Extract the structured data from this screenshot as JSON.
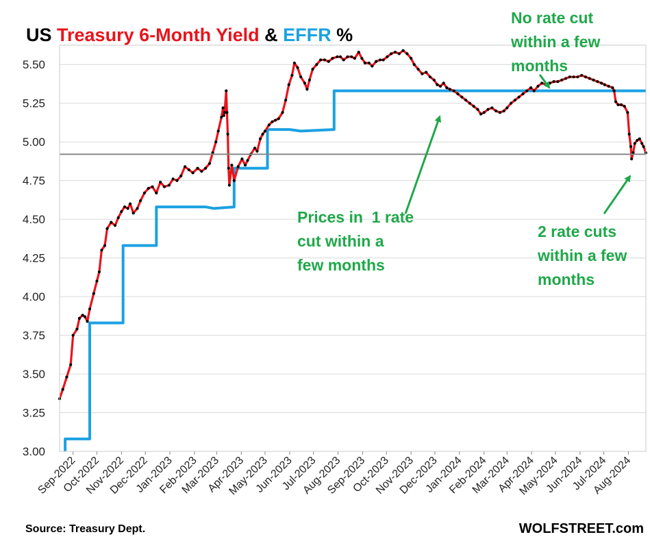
{
  "chart_data": {
    "type": "line",
    "title_parts": [
      {
        "text": "US ",
        "color": "#000000"
      },
      {
        "text": "Treasury 6-Month Yield",
        "color": "#e8141b"
      },
      {
        "text": " & ",
        "color": "#000000"
      },
      {
        "text": "EFFR",
        "color": "#1ba1e2"
      },
      {
        "text": " %",
        "color": "#000000"
      }
    ],
    "xlabel": "",
    "ylabel": "",
    "ylim": [
      3.0,
      5.625
    ],
    "yticks": [
      "3.00",
      "3.25",
      "3.50",
      "3.75",
      "4.00",
      "4.25",
      "4.50",
      "4.75",
      "5.00",
      "5.25",
      "5.50"
    ],
    "x_range": [
      "2022-08-15",
      "2024-08-23"
    ],
    "x_ticks": [
      {
        "date": "2022-09-01",
        "label": "Sep-2022"
      },
      {
        "date": "2022-10-01",
        "label": "Oct-2022"
      },
      {
        "date": "2022-11-01",
        "label": "Nov-2022"
      },
      {
        "date": "2022-12-01",
        "label": "Dec-2022"
      },
      {
        "date": "2023-01-01",
        "label": "Jan-2023"
      },
      {
        "date": "2023-02-01",
        "label": "Feb-2023"
      },
      {
        "date": "2023-03-01",
        "label": "Mar-2023"
      },
      {
        "date": "2023-04-01",
        "label": "Apr-2023"
      },
      {
        "date": "2023-05-01",
        "label": "May-2023"
      },
      {
        "date": "2023-06-01",
        "label": "Jun-2023"
      },
      {
        "date": "2023-07-01",
        "label": "Jul-2023"
      },
      {
        "date": "2023-08-01",
        "label": "Aug-2023"
      },
      {
        "date": "2023-09-01",
        "label": "Sep-2023"
      },
      {
        "date": "2023-10-01",
        "label": "Oct-2023"
      },
      {
        "date": "2023-11-01",
        "label": "Nov-2023"
      },
      {
        "date": "2023-12-01",
        "label": "Dec-2023"
      },
      {
        "date": "2024-01-01",
        "label": "Jan-2024"
      },
      {
        "date": "2024-02-01",
        "label": "Feb-2024"
      },
      {
        "date": "2024-03-01",
        "label": "Mar-2024"
      },
      {
        "date": "2024-04-01",
        "label": "Apr-2024"
      },
      {
        "date": "2024-05-01",
        "label": "May-2024"
      },
      {
        "date": "2024-06-01",
        "label": "Jun-2024"
      },
      {
        "date": "2024-07-01",
        "label": "Jul-2024"
      },
      {
        "date": "2024-08-01",
        "label": "Aug-2024"
      }
    ],
    "grid": true,
    "reference_line": {
      "y": 4.92,
      "color": "#888888"
    },
    "series": [
      {
        "color": "#e8141b",
        "marker_color": "#000000",
        "points": [
          [
            "2022-08-15",
            3.34
          ],
          [
            "2022-08-19",
            3.4
          ],
          [
            "2022-08-24",
            3.48
          ],
          [
            "2022-08-29",
            3.56
          ],
          [
            "2022-09-01",
            3.75
          ],
          [
            "2022-09-06",
            3.79
          ],
          [
            "2022-09-09",
            3.86
          ],
          [
            "2022-09-13",
            3.88
          ],
          [
            "2022-09-16",
            3.87
          ],
          [
            "2022-09-19",
            3.84
          ],
          [
            "2022-09-22",
            3.92
          ],
          [
            "2022-09-27",
            4.02
          ],
          [
            "2022-10-01",
            4.1
          ],
          [
            "2022-10-04",
            4.16
          ],
          [
            "2022-10-07",
            4.3
          ],
          [
            "2022-10-11",
            4.33
          ],
          [
            "2022-10-14",
            4.44
          ],
          [
            "2022-10-19",
            4.48
          ],
          [
            "2022-10-24",
            4.46
          ],
          [
            "2022-10-28",
            4.51
          ],
          [
            "2022-11-01",
            4.55
          ],
          [
            "2022-11-05",
            4.58
          ],
          [
            "2022-11-09",
            4.57
          ],
          [
            "2022-11-12",
            4.6
          ],
          [
            "2022-11-16",
            4.54
          ],
          [
            "2022-11-21",
            4.57
          ],
          [
            "2022-11-25",
            4.62
          ],
          [
            "2022-11-30",
            4.67
          ],
          [
            "2022-12-05",
            4.7
          ],
          [
            "2022-12-10",
            4.71
          ],
          [
            "2022-12-15",
            4.67
          ],
          [
            "2022-12-20",
            4.74
          ],
          [
            "2022-12-25",
            4.71
          ],
          [
            "2022-12-31",
            4.72
          ],
          [
            "2023-01-05",
            4.76
          ],
          [
            "2023-01-10",
            4.75
          ],
          [
            "2023-01-15",
            4.78
          ],
          [
            "2023-01-20",
            4.84
          ],
          [
            "2023-01-25",
            4.82
          ],
          [
            "2023-01-30",
            4.8
          ],
          [
            "2023-02-05",
            4.83
          ],
          [
            "2023-02-10",
            4.81
          ],
          [
            "2023-02-15",
            4.83
          ],
          [
            "2023-02-20",
            4.86
          ],
          [
            "2023-02-24",
            4.93
          ],
          [
            "2023-02-28",
            5.0
          ],
          [
            "2023-03-03",
            5.07
          ],
          [
            "2023-03-07",
            5.16
          ],
          [
            "2023-03-09",
            5.22
          ],
          [
            "2023-03-10",
            5.17
          ],
          [
            "2023-03-11",
            5.19
          ],
          [
            "2023-03-13",
            5.33
          ],
          [
            "2023-03-14",
            5.19
          ],
          [
            "2023-03-15",
            5.05
          ],
          [
            "2023-03-16",
            4.83
          ],
          [
            "2023-03-17",
            4.72
          ],
          [
            "2023-03-20",
            4.85
          ],
          [
            "2023-03-23",
            4.75
          ],
          [
            "2023-03-28",
            4.84
          ],
          [
            "2023-04-02",
            4.89
          ],
          [
            "2023-04-06",
            4.85
          ],
          [
            "2023-04-09",
            4.88
          ],
          [
            "2023-04-13",
            4.92
          ],
          [
            "2023-04-18",
            4.96
          ],
          [
            "2023-04-21",
            4.94
          ],
          [
            "2023-04-25",
            5.02
          ],
          [
            "2023-04-28",
            5.05
          ],
          [
            "2023-05-01",
            5.07
          ],
          [
            "2023-05-06",
            5.11
          ],
          [
            "2023-05-10",
            5.13
          ],
          [
            "2023-05-14",
            5.14
          ],
          [
            "2023-05-18",
            5.15
          ],
          [
            "2023-05-23",
            5.19
          ],
          [
            "2023-05-27",
            5.27
          ],
          [
            "2023-05-31",
            5.37
          ],
          [
            "2023-06-04",
            5.43
          ],
          [
            "2023-06-07",
            5.51
          ],
          [
            "2023-06-11",
            5.48
          ],
          [
            "2023-06-15",
            5.42
          ],
          [
            "2023-06-20",
            5.38
          ],
          [
            "2023-06-23",
            5.34
          ],
          [
            "2023-06-26",
            5.4
          ],
          [
            "2023-06-30",
            5.47
          ],
          [
            "2023-07-05",
            5.5
          ],
          [
            "2023-07-10",
            5.53
          ],
          [
            "2023-07-15",
            5.53
          ],
          [
            "2023-07-20",
            5.52
          ],
          [
            "2023-07-25",
            5.54
          ],
          [
            "2023-07-31",
            5.55
          ],
          [
            "2023-08-04",
            5.55
          ],
          [
            "2023-08-08",
            5.53
          ],
          [
            "2023-08-13",
            5.55
          ],
          [
            "2023-08-18",
            5.55
          ],
          [
            "2023-08-22",
            5.54
          ],
          [
            "2023-08-27",
            5.58
          ],
          [
            "2023-08-31",
            5.54
          ],
          [
            "2023-09-04",
            5.51
          ],
          [
            "2023-09-09",
            5.51
          ],
          [
            "2023-09-13",
            5.49
          ],
          [
            "2023-09-18",
            5.52
          ],
          [
            "2023-09-23",
            5.53
          ],
          [
            "2023-09-27",
            5.53
          ],
          [
            "2023-10-02",
            5.55
          ],
          [
            "2023-10-07",
            5.57
          ],
          [
            "2023-10-12",
            5.58
          ],
          [
            "2023-10-17",
            5.57
          ],
          [
            "2023-10-22",
            5.59
          ],
          [
            "2023-10-27",
            5.57
          ],
          [
            "2023-11-01",
            5.54
          ],
          [
            "2023-11-05",
            5.5
          ],
          [
            "2023-11-10",
            5.47
          ],
          [
            "2023-11-15",
            5.44
          ],
          [
            "2023-11-20",
            5.45
          ],
          [
            "2023-11-25",
            5.42
          ],
          [
            "2023-11-30",
            5.4
          ],
          [
            "2023-12-04",
            5.37
          ],
          [
            "2023-12-08",
            5.36
          ],
          [
            "2023-12-12",
            5.38
          ],
          [
            "2023-12-16",
            5.35
          ],
          [
            "2023-12-20",
            5.34
          ],
          [
            "2023-12-25",
            5.33
          ],
          [
            "2023-12-30",
            5.31
          ],
          [
            "2024-01-04",
            5.29
          ],
          [
            "2024-01-09",
            5.27
          ],
          [
            "2024-01-14",
            5.25
          ],
          [
            "2024-01-19",
            5.23
          ],
          [
            "2024-01-24",
            5.21
          ],
          [
            "2024-01-28",
            5.18
          ],
          [
            "2024-02-01",
            5.19
          ],
          [
            "2024-02-06",
            5.21
          ],
          [
            "2024-02-11",
            5.22
          ],
          [
            "2024-02-16",
            5.2
          ],
          [
            "2024-02-21",
            5.19
          ],
          [
            "2024-02-26",
            5.2
          ],
          [
            "2024-03-01",
            5.22
          ],
          [
            "2024-03-06",
            5.25
          ],
          [
            "2024-03-11",
            5.27
          ],
          [
            "2024-03-16",
            5.29
          ],
          [
            "2024-03-21",
            5.31
          ],
          [
            "2024-03-26",
            5.33
          ],
          [
            "2024-03-31",
            5.35
          ],
          [
            "2024-04-04",
            5.33
          ],
          [
            "2024-04-09",
            5.36
          ],
          [
            "2024-04-14",
            5.38
          ],
          [
            "2024-04-19",
            5.37
          ],
          [
            "2024-04-24",
            5.38
          ],
          [
            "2024-04-29",
            5.39
          ],
          [
            "2024-05-04",
            5.39
          ],
          [
            "2024-05-09",
            5.4
          ],
          [
            "2024-05-14",
            5.41
          ],
          [
            "2024-05-19",
            5.42
          ],
          [
            "2024-05-24",
            5.42
          ],
          [
            "2024-05-29",
            5.42
          ],
          [
            "2024-06-03",
            5.43
          ],
          [
            "2024-06-08",
            5.42
          ],
          [
            "2024-06-13",
            5.41
          ],
          [
            "2024-06-18",
            5.4
          ],
          [
            "2024-06-23",
            5.39
          ],
          [
            "2024-06-28",
            5.38
          ],
          [
            "2024-07-02",
            5.37
          ],
          [
            "2024-07-07",
            5.36
          ],
          [
            "2024-07-12",
            5.35
          ],
          [
            "2024-07-14",
            5.33
          ],
          [
            "2024-07-16",
            5.26
          ],
          [
            "2024-07-19",
            5.24
          ],
          [
            "2024-07-23",
            5.24
          ],
          [
            "2024-07-27",
            5.23
          ],
          [
            "2024-07-31",
            5.19
          ],
          [
            "2024-08-02",
            5.05
          ],
          [
            "2024-08-04",
            4.97
          ],
          [
            "2024-08-05",
            4.89
          ],
          [
            "2024-08-07",
            4.93
          ],
          [
            "2024-08-09",
            4.99
          ],
          [
            "2024-08-12",
            5.01
          ],
          [
            "2024-08-15",
            5.02
          ],
          [
            "2024-08-18",
            4.99
          ],
          [
            "2024-08-20",
            4.97
          ],
          [
            "2024-08-23",
            4.93
          ]
        ]
      },
      {
        "color": "#1ba1e2",
        "step": true,
        "points": [
          [
            "2022-08-22",
            2.33
          ],
          [
            "2022-08-22",
            3.08
          ],
          [
            "2022-09-22",
            3.08
          ],
          [
            "2022-09-22",
            3.83
          ],
          [
            "2022-11-03",
            3.83
          ],
          [
            "2022-11-03",
            4.33
          ],
          [
            "2022-12-15",
            4.33
          ],
          [
            "2022-12-15",
            4.58
          ],
          [
            "2023-02-02",
            4.58
          ],
          [
            "2023-02-15",
            4.58
          ],
          [
            "2023-02-25",
            4.57
          ],
          [
            "2023-03-23",
            4.58
          ],
          [
            "2023-03-23",
            4.83
          ],
          [
            "2023-05-04",
            4.83
          ],
          [
            "2023-05-04",
            5.08
          ],
          [
            "2023-06-01",
            5.08
          ],
          [
            "2023-06-15",
            5.07
          ],
          [
            "2023-07-27",
            5.08
          ],
          [
            "2023-07-27",
            5.33
          ],
          [
            "2024-08-23",
            5.33
          ]
        ]
      }
    ],
    "annotations": [
      {
        "lines": [
          "No rate cut",
          "within a few",
          "months"
        ]
      },
      {
        "lines": [
          "Prices in  1 rate",
          "cut within a",
          "few months"
        ]
      },
      {
        "lines": [
          "2 rate cuts",
          "within a few",
          "months"
        ]
      }
    ]
  },
  "footer": {
    "source": "Source: Treasury Dept.",
    "brand": "WOLFSTREET.com"
  }
}
